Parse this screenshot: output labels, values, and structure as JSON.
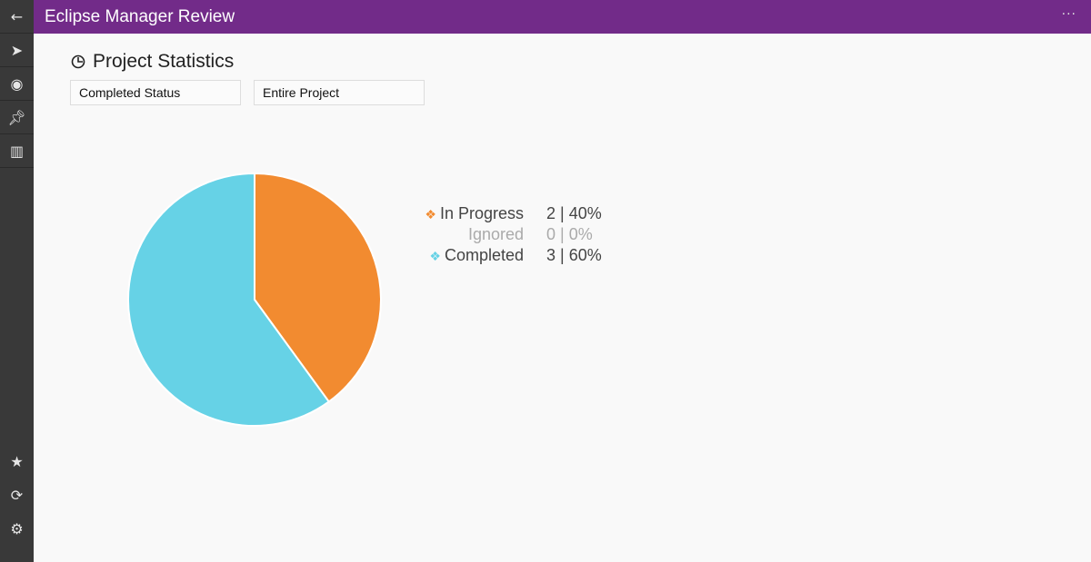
{
  "header": {
    "title": "Eclipse Manager Review",
    "more_icon": "ellipsis-icon"
  },
  "sidebar": {
    "items": [
      "back-arrow-icon",
      "bird-icon",
      "target-icon",
      "pin-icon",
      "chart-icon"
    ],
    "bottom": [
      "star-icon",
      "refresh-icon",
      "gear-icon"
    ]
  },
  "stats": {
    "title": "Project Statistics",
    "filter_status": "Completed Status",
    "filter_scope": "Entire Project"
  },
  "colors": {
    "header": "#722b89",
    "in_progress": "#f28b30",
    "completed": "#66d2e6"
  },
  "chart_data": {
    "type": "pie",
    "series": [
      {
        "name": "In Progress",
        "count": "2",
        "percent": "40%",
        "value": 40,
        "color": "#f28b30"
      },
      {
        "name": "Ignored",
        "count": "0",
        "percent": "0%",
        "value": 0,
        "color": "#aaaaaa"
      },
      {
        "name": "Completed",
        "count": "3",
        "percent": "60%",
        "value": 60,
        "color": "#66d2e6"
      }
    ]
  }
}
